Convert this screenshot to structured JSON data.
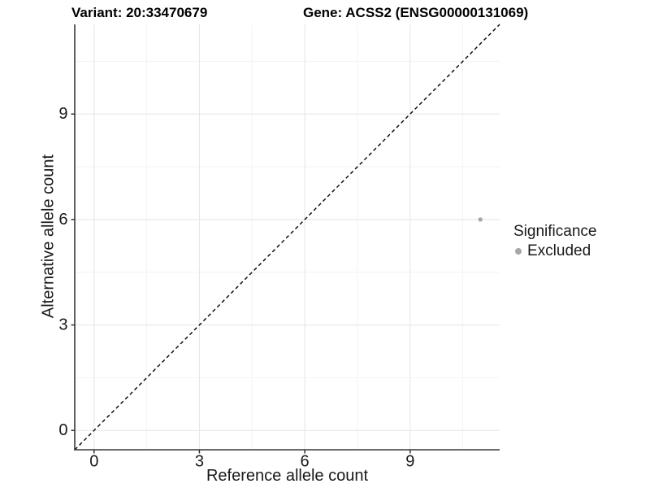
{
  "figure": {
    "title_left": "Variant: 20:33470679",
    "title_right": "Gene: ACSS2 (ENSG00000131069)"
  },
  "axes": {
    "x_label": "Reference allele count",
    "y_label": "Alternative allele count"
  },
  "legend": {
    "title": "Significance",
    "entries": [
      {
        "label": "Excluded",
        "color": "#a7a7a7",
        "marker": "dot"
      }
    ]
  },
  "chart_data": {
    "type": "scatter",
    "title": "Variant: 20:33470679 | Gene: ACSS2 (ENSG00000131069)",
    "xlabel": "Reference allele count",
    "ylabel": "Alternative allele count",
    "xlim": [
      -0.55,
      11.55
    ],
    "ylim": [
      -0.55,
      11.55
    ],
    "x_ticks": [
      0,
      3,
      6,
      9
    ],
    "y_ticks": [
      0,
      3,
      6,
      9
    ],
    "x_minor_ticks": [
      1.5,
      4.5,
      7.5,
      10.5
    ],
    "y_minor_ticks": [
      1.5,
      4.5,
      7.5,
      10.5
    ],
    "grid": true,
    "legend_position": "right",
    "series": [
      {
        "name": "Excluded",
        "color": "#a7a7a7",
        "points": [
          {
            "x": 11,
            "y": 6
          }
        ]
      }
    ],
    "reference_line": {
      "type": "identity",
      "style": "dashed",
      "color": "#000000",
      "from": [
        -0.55,
        -0.55
      ],
      "to": [
        11.55,
        11.55
      ]
    },
    "colors": {
      "background": "#ffffff",
      "grid_major": "#e7e7e7",
      "grid_minor": "#f2f2f2",
      "axis_line": "#3a3a3a",
      "tick_mark": "#333333",
      "tick_text": "#1a1a1a",
      "point": "#a7a7a7"
    }
  }
}
